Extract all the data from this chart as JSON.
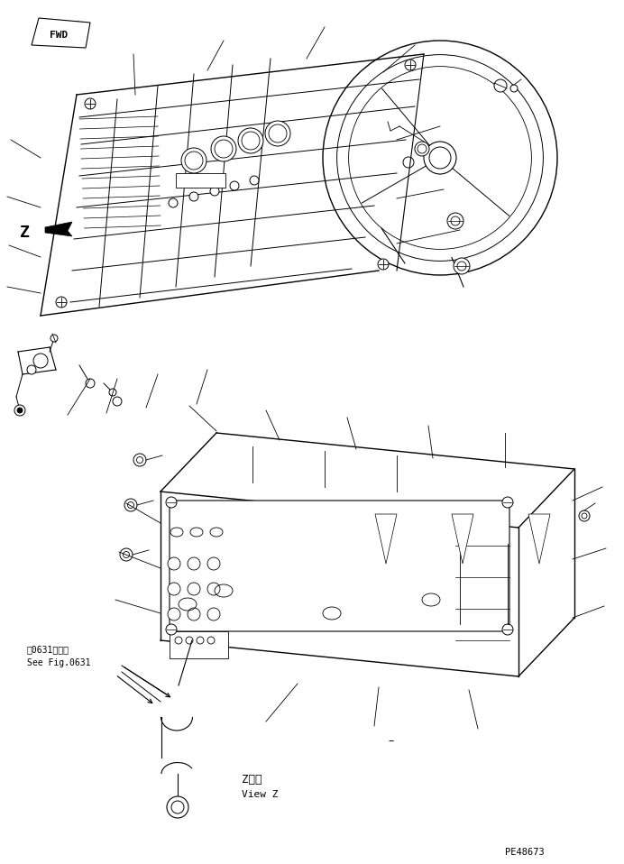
{
  "bg_color": "#ffffff",
  "line_color": "#000000",
  "fwd_label": "FWD",
  "z_label": "Z",
  "view_z_label1": "Z　視",
  "view_z_label2": "View Z",
  "see_fig_line1": "第0631図参照",
  "see_fig_line2": "See Fig.0631",
  "part_number": "PE48673",
  "fig_width": 6.92,
  "fig_height": 9.58,
  "dpi": 100
}
